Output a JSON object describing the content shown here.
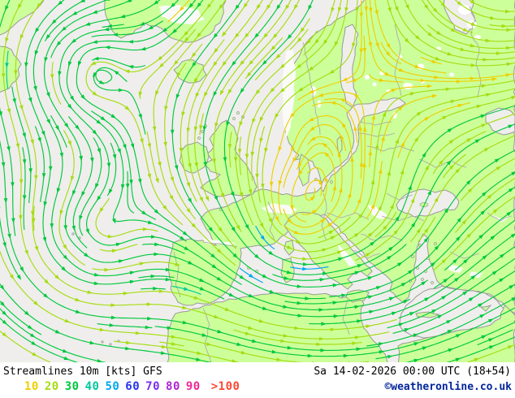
{
  "map": {
    "title": "Streamlines 10m [kts] GFS",
    "parameter": "Streamlines 10m",
    "unit": "kts",
    "model": "GFS",
    "datetime": "Sa 14-02-2026 00:00 UTC (18+54)",
    "copyright": "©weatheronline.co.uk",
    "colors": {
      "sea": "#efeeec",
      "land": "#ccff99",
      "coast": "#999999",
      "border": "#ababab",
      "lake": "#ffffff",
      "terrain_white": "#fafaf8",
      "text": "#000000",
      "copyright": "#02259b"
    }
  },
  "legend": {
    "items": [
      {
        "label": "10",
        "color": "#edd000"
      },
      {
        "label": "20",
        "color": "#a6dc12"
      },
      {
        "label": "30",
        "color": "#00c83e"
      },
      {
        "label": "40",
        "color": "#00c89e"
      },
      {
        "label": "50",
        "color": "#00a8f0"
      },
      {
        "label": "60",
        "color": "#2634ee"
      },
      {
        "label": "70",
        "color": "#7a2ff0"
      },
      {
        "label": "80",
        "color": "#ad24d4"
      },
      {
        "label": "90",
        "color": "#f02795"
      },
      {
        "label": ">100",
        "color": "#fb4a34"
      }
    ]
  }
}
